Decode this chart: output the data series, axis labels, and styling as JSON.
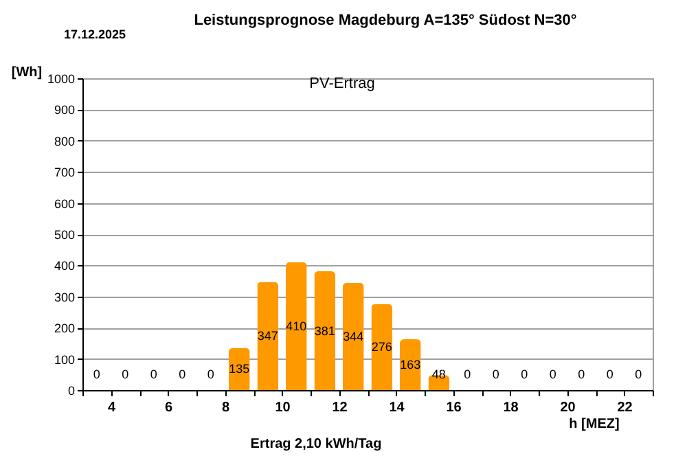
{
  "chart_data": {
    "type": "bar",
    "title": "Leistungsprognose Magdeburg A=135° Südost N=30°",
    "xlabel": "h [MEZ]",
    "ylabel": "[Wh]",
    "annotations": [
      "17.12.2025",
      "PV-Ertrag",
      "Ertrag 2,10 kWh/Tag"
    ],
    "x": [
      3.5,
      4.5,
      5.5,
      6.5,
      7.5,
      8.5,
      9.5,
      10.5,
      11.5,
      12.5,
      13.5,
      14.5,
      15.5,
      16.5,
      17.5,
      18.5,
      19.5,
      20.5,
      21.5,
      22.5
    ],
    "values": [
      0,
      0,
      0,
      0,
      0,
      135,
      347,
      410,
      381,
      344,
      276,
      163,
      48,
      0,
      0,
      0,
      0,
      0,
      0,
      0
    ],
    "color": "#ff9900",
    "data_labels": true,
    "xlim": [
      3,
      23
    ],
    "xticks": [
      {
        "value": 3,
        "label": null
      },
      4,
      {
        "value": 5,
        "label": null
      },
      6,
      {
        "value": 7,
        "label": null
      },
      8,
      {
        "value": 9,
        "label": null
      },
      10,
      {
        "value": 11,
        "label": null
      },
      12,
      {
        "value": 13,
        "label": null
      },
      14,
      {
        "value": 15,
        "label": null
      },
      16,
      {
        "value": 17,
        "label": null
      },
      18,
      {
        "value": 19,
        "label": null
      },
      20,
      {
        "value": 21,
        "label": null
      },
      22,
      {
        "value": 23,
        "label": null
      }
    ],
    "ylim": [
      0,
      1000
    ],
    "yticks": [
      0,
      100,
      200,
      300,
      400,
      500,
      600,
      700,
      800,
      900,
      1000
    ],
    "grid": "y"
  }
}
